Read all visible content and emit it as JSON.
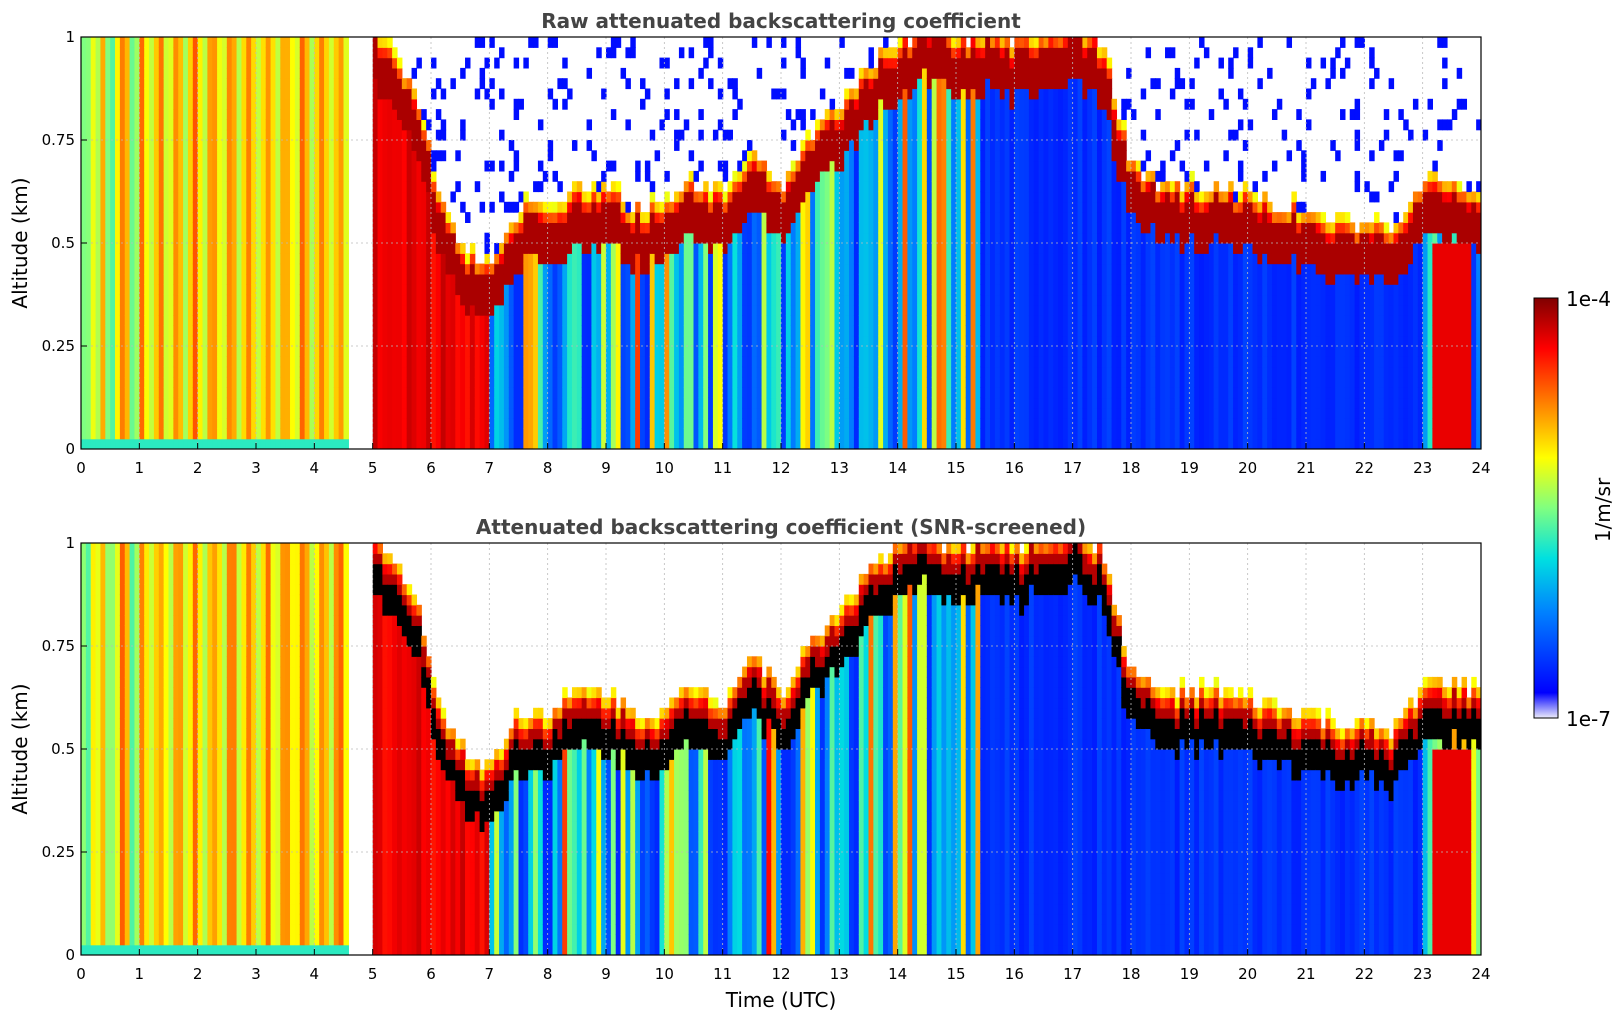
{
  "chart_data": [
    {
      "type": "heatmap",
      "title": "Raw attenuated backscattering coefficient",
      "ylabel": "Altitude (km)",
      "xlabel": "",
      "xlim": [
        0,
        24
      ],
      "ylim": [
        0,
        1
      ],
      "xticks": [
        "0",
        "1",
        "2",
        "3",
        "4",
        "5",
        "6",
        "7",
        "8",
        "9",
        "10",
        "11",
        "12",
        "13",
        "14",
        "15",
        "16",
        "17",
        "18",
        "19",
        "20",
        "21",
        "22",
        "23",
        "24"
      ],
      "yticks": [
        "0",
        "0.25",
        "0.5",
        "0.75",
        "1"
      ],
      "grid": true,
      "screened": false
    },
    {
      "type": "heatmap",
      "title": "Attenuated backscattering coefficient (SNR-screened)",
      "ylabel": "Altitude (km)",
      "xlabel": "Time (UTC)",
      "xlim": [
        0,
        24
      ],
      "ylim": [
        0,
        1
      ],
      "xticks": [
        "0",
        "1",
        "2",
        "3",
        "4",
        "5",
        "6",
        "7",
        "8",
        "9",
        "10",
        "11",
        "12",
        "13",
        "14",
        "15",
        "16",
        "17",
        "18",
        "19",
        "20",
        "21",
        "22",
        "23",
        "24"
      ],
      "yticks": [
        "0",
        "0.25",
        "0.5",
        "0.75",
        "1"
      ],
      "grid": true,
      "screened": true
    }
  ],
  "colorbar": {
    "label": "1/m/sr",
    "min_label": "1e-7",
    "max_label": "1e-4",
    "colormap": [
      "#ecebfa",
      "#0000ff",
      "#0080ff",
      "#00e0e0",
      "#80ff80",
      "#ffff00",
      "#ff8000",
      "#ff0000",
      "#800000"
    ]
  },
  "cloud_top_profile": [
    {
      "t": 4.7,
      "h": 1.0
    },
    {
      "t": 5.3,
      "h": 0.95
    },
    {
      "t": 5.8,
      "h": 0.8
    },
    {
      "t": 6.2,
      "h": 0.55
    },
    {
      "t": 6.6,
      "h": 0.45
    },
    {
      "t": 7.0,
      "h": 0.42
    },
    {
      "t": 7.5,
      "h": 0.55
    },
    {
      "t": 8.0,
      "h": 0.55
    },
    {
      "t": 8.5,
      "h": 0.6
    },
    {
      "t": 9.0,
      "h": 0.6
    },
    {
      "t": 9.5,
      "h": 0.55
    },
    {
      "t": 10.0,
      "h": 0.55
    },
    {
      "t": 10.5,
      "h": 0.62
    },
    {
      "t": 11.0,
      "h": 0.58
    },
    {
      "t": 11.5,
      "h": 0.7
    },
    {
      "t": 12.0,
      "h": 0.6
    },
    {
      "t": 12.5,
      "h": 0.72
    },
    {
      "t": 13.0,
      "h": 0.8
    },
    {
      "t": 13.5,
      "h": 0.9
    },
    {
      "t": 14.0,
      "h": 0.95
    },
    {
      "t": 14.5,
      "h": 1.0
    },
    {
      "t": 15.0,
      "h": 0.95
    },
    {
      "t": 15.5,
      "h": 0.98
    },
    {
      "t": 16.0,
      "h": 0.95
    },
    {
      "t": 16.5,
      "h": 0.98
    },
    {
      "t": 17.0,
      "h": 1.0
    },
    {
      "t": 17.5,
      "h": 0.95
    },
    {
      "t": 18.0,
      "h": 0.66
    },
    {
      "t": 18.5,
      "h": 0.6
    },
    {
      "t": 19.0,
      "h": 0.6
    },
    {
      "t": 19.5,
      "h": 0.6
    },
    {
      "t": 20.0,
      "h": 0.58
    },
    {
      "t": 20.5,
      "h": 0.56
    },
    {
      "t": 21.0,
      "h": 0.55
    },
    {
      "t": 21.5,
      "h": 0.52
    },
    {
      "t": 22.0,
      "h": 0.52
    },
    {
      "t": 22.5,
      "h": 0.5
    },
    {
      "t": 23.0,
      "h": 0.62
    },
    {
      "t": 23.5,
      "h": 0.62
    },
    {
      "t": 24.0,
      "h": 0.6
    }
  ]
}
